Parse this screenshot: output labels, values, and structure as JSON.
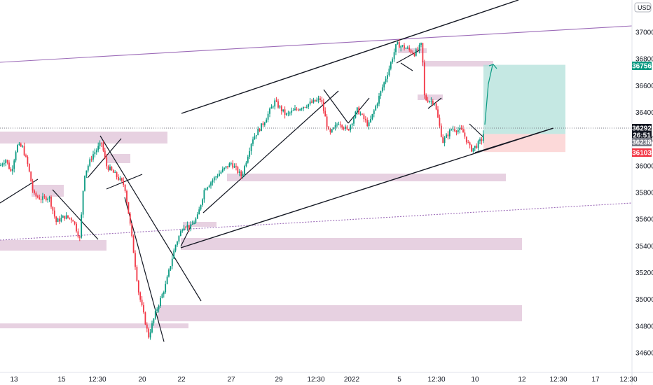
{
  "chart_data": {
    "type": "candlestick",
    "currency": "USD",
    "x_tick_labels": [
      "13",
      "15",
      "12:30",
      "20",
      "22",
      "27",
      "29",
      "12:30",
      "2022",
      "5",
      "12:30",
      "10",
      "12",
      "12:30",
      "17",
      "12:30"
    ],
    "y_tick_labels": [
      "37000",
      "36800",
      "36600",
      "36400",
      "36200",
      "36000",
      "35800",
      "35600",
      "35400",
      "35200",
      "35000",
      "34800",
      "34600"
    ],
    "ylim": [
      34540,
      37180
    ],
    "price_tags": [
      {
        "label": "36756",
        "value": 36756,
        "color": "#089981"
      },
      {
        "label": "36292",
        "value": 36292,
        "color": "#131722"
      },
      {
        "label": "26:51",
        "value": 36240,
        "color": "#131722"
      },
      {
        "label": "36238",
        "value": 36215,
        "color": "#787b86"
      },
      {
        "label": "36103",
        "value": 36103,
        "color": "#f23645"
      }
    ],
    "current_price": 36292,
    "position": {
      "entry": 36238,
      "target": 36756,
      "stop": 36103
    },
    "colors": {
      "up": "#089981",
      "down": "#f23645",
      "zone": "#d8b4cf",
      "trend": "#131722",
      "channel": "#9c6bb8"
    }
  }
}
